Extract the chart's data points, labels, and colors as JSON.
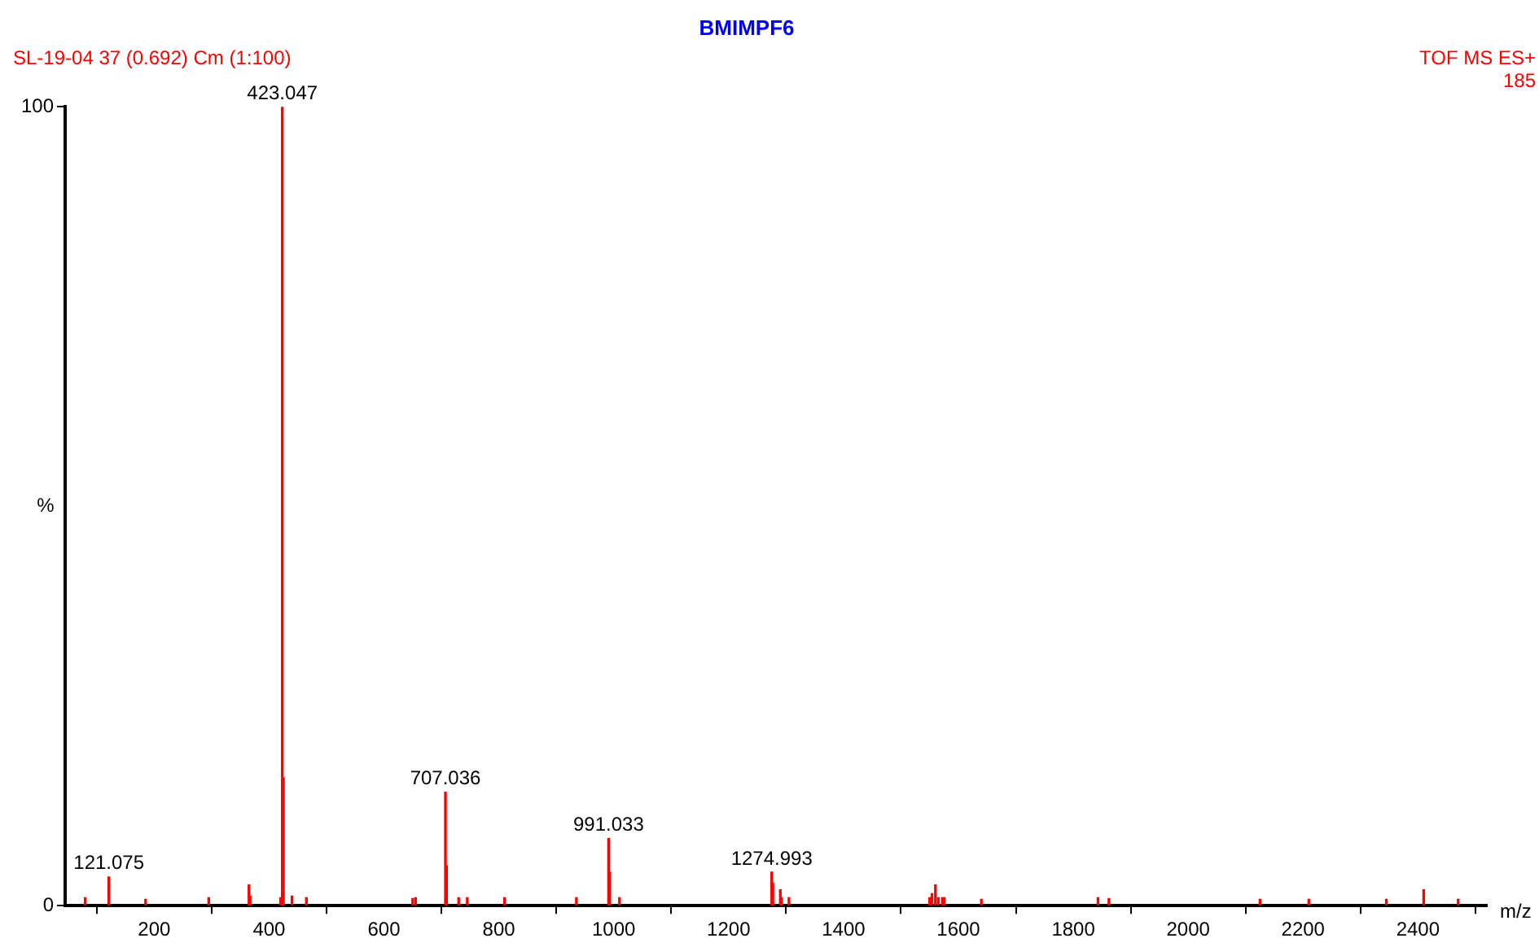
{
  "chart_data": {
    "type": "bar",
    "title": "BMIMPF6",
    "xlabel": "m/z",
    "ylabel": "%",
    "annotations": [
      "SL-19-04 37 (0.692) Cm (1:100)",
      "TOF MS ES+",
      "185",
      {
        "text": "121.075",
        "x": 121.075,
        "y": 3.6
      },
      {
        "text": "423.047",
        "x": 423.047,
        "y": 100
      },
      {
        "text": "707.036",
        "x": 707.036,
        "y": 14.2
      },
      {
        "text": "991.033",
        "x": 991.033,
        "y": 8.4
      },
      {
        "text": "1274.993",
        "x": 1274.993,
        "y": 4.2
      }
    ],
    "x": [
      80,
      121.075,
      185,
      295,
      365,
      367,
      420,
      423.047,
      425,
      440,
      465,
      650,
      655,
      707.036,
      709,
      730,
      745,
      810,
      935,
      991.033,
      993,
      1010,
      1274.993,
      1277,
      1290,
      1292,
      1305,
      1550,
      1554,
      1560,
      1565,
      1572,
      1575,
      1640,
      1843,
      1862,
      2125,
      2210,
      2345,
      2410,
      2470
    ],
    "values": [
      1.0,
      3.6,
      0.8,
      1.0,
      2.6,
      1.2,
      1.0,
      100,
      16,
      1.2,
      1.0,
      0.9,
      1.0,
      14.2,
      5,
      1.0,
      1.0,
      1.0,
      1.0,
      8.4,
      4.2,
      1.0,
      4.2,
      2.8,
      2,
      1.0,
      1.0,
      1.0,
      1.5,
      2.6,
      1.0,
      1.0,
      1.0,
      0.8,
      1.0,
      0.9,
      0.8,
      0.8,
      0.8,
      2,
      0.8
    ],
    "color": "#ff0000",
    "xlim": [
      45,
      2520
    ],
    "xticks": [
      200,
      400,
      600,
      800,
      1000,
      1200,
      1400,
      1600,
      1800,
      2000,
      2200,
      2400
    ],
    "ylim": [
      0,
      100
    ],
    "yticks": [
      0,
      100
    ],
    "grid": false,
    "legend": false
  }
}
